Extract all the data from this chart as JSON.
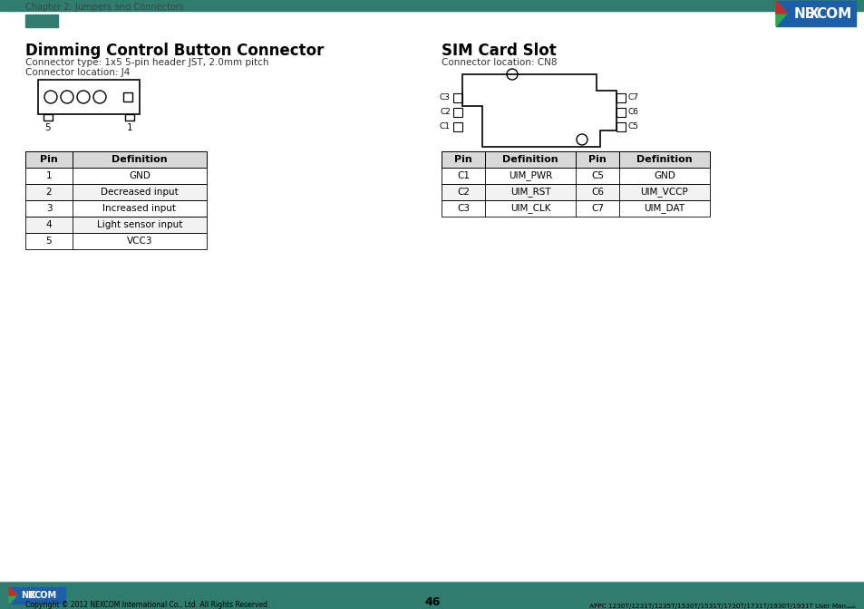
{
  "page_title_left": "Chapter 2: Jumpers and Connectors",
  "footer_copyright": "Copyright © 2012 NEXCOM International Co., Ltd. All Rights Reserved.",
  "footer_page": "46",
  "footer_right": "APPC 1230T/1231T/1235T/1530T/1531T/1730T/1731T/1930T/1931T User Manual",
  "section1_title": "Dimming Control Button Connector",
  "section1_subtitle1": "Connector type: 1x5 5-pin header JST, 2.0mm pitch",
  "section1_subtitle2": "Connector location: J4",
  "section2_title": "SIM Card Slot",
  "section2_subtitle": "Connector location: CN8",
  "table1_header": [
    "Pin",
    "Definition"
  ],
  "table1_rows": [
    [
      "1",
      "GND"
    ],
    [
      "2",
      "Decreased input"
    ],
    [
      "3",
      "Increased input"
    ],
    [
      "4",
      "Light sensor input"
    ],
    [
      "5",
      "VCC3"
    ]
  ],
  "table2_header": [
    "Pin",
    "Definition",
    "Pin",
    "Definition"
  ],
  "table2_rows": [
    [
      "C1",
      "UIM_PWR",
      "C5",
      "GND"
    ],
    [
      "C2",
      "UIM_RST",
      "C6",
      "UIM_VCCP"
    ],
    [
      "C3",
      "UIM_CLK",
      "C7",
      "UIM_DAT"
    ]
  ],
  "header_bar_color": "#2e7d6e",
  "footer_bar_color": "#2e7d6e",
  "bg_color": "#ffffff",
  "nexcom_blue": "#1a5fa8",
  "teal_color": "#2e7d6e",
  "table_header_bg": "#d8d8d8",
  "table_row_alt": "#f2f2f2"
}
